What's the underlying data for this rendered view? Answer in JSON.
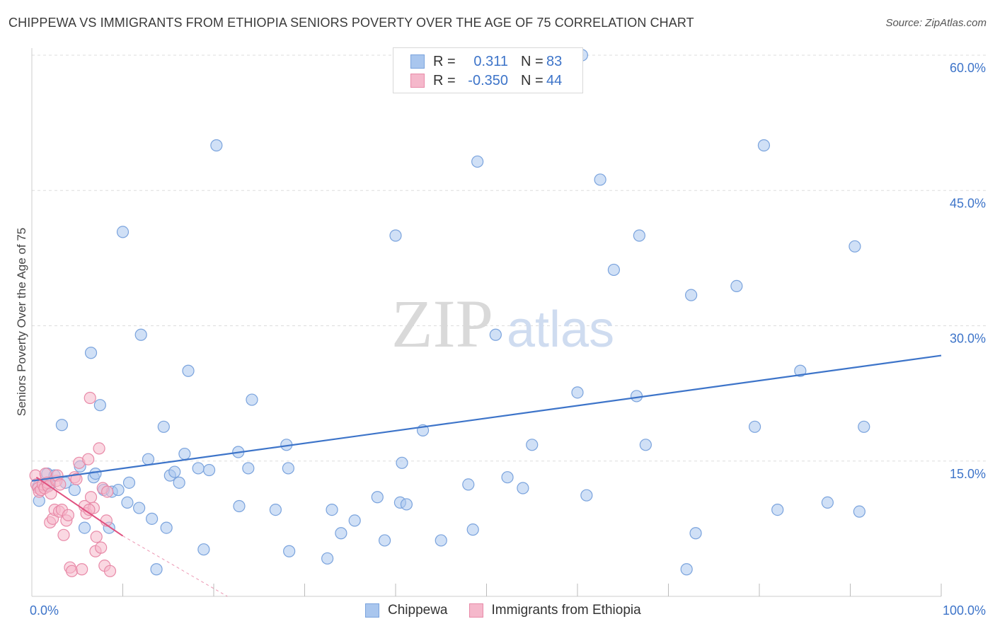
{
  "title": "CHIPPEWA VS IMMIGRANTS FROM ETHIOPIA SENIORS POVERTY OVER THE AGE OF 75 CORRELATION CHART",
  "source": "Source: ZipAtlas.com",
  "watermark": {
    "zip": "ZIP",
    "atlas": "atlas"
  },
  "colors": {
    "chippewa_fill": "#a9c6ee",
    "chippewa_stroke": "#7aa3dd",
    "chippewa_line": "#3d74c9",
    "ethiopia_fill": "#f5b8cb",
    "ethiopia_stroke": "#e88aa8",
    "ethiopia_line": "#e0507f",
    "value_text": "#3d74c9",
    "grid": "#dddddd"
  },
  "legend": {
    "rows": [
      {
        "r_label": "R =",
        "r_value": "0.311",
        "n_label": "N =",
        "n_value": "83"
      },
      {
        "r_label": "R =",
        "r_value": "-0.350",
        "n_label": "N =",
        "n_value": "44"
      }
    ]
  },
  "bottom_legend": [
    "Chippewa",
    "Immigrants from Ethiopia"
  ],
  "chart_data": {
    "type": "scatter",
    "title": "CHIPPEWA VS IMMIGRANTS FROM ETHIOPIA SENIORS POVERTY OVER THE AGE OF 75 CORRELATION CHART",
    "xlabel": "",
    "ylabel": "Seniors Poverty Over the Age of 75",
    "xlim": [
      0,
      100
    ],
    "ylim": [
      0,
      60
    ],
    "x_tick_labels": [
      "0.0%",
      "100.0%"
    ],
    "y_ticks": [
      15,
      30,
      45,
      60
    ],
    "y_tick_labels": [
      "15.0%",
      "30.0%",
      "45.0%",
      "60.0%"
    ],
    "grid": true,
    "legend_position": "top-center",
    "series": [
      {
        "name": "Chippewa",
        "r": 0.311,
        "n": 83,
        "trend": {
          "x": [
            0,
            100
          ],
          "y": [
            12.8,
            26.7
          ]
        },
        "points": [
          [
            0.7,
            12.2
          ],
          [
            0.8,
            10.6
          ],
          [
            1.5,
            12.2
          ],
          [
            1.7,
            13.6
          ],
          [
            2.0,
            12.4
          ],
          [
            2.5,
            13.4
          ],
          [
            3.3,
            19.0
          ],
          [
            3.7,
            12.6
          ],
          [
            4.7,
            11.8
          ],
          [
            5.3,
            14.4
          ],
          [
            5.8,
            7.6
          ],
          [
            6.5,
            27.0
          ],
          [
            6.8,
            13.2
          ],
          [
            7.0,
            13.6
          ],
          [
            7.5,
            21.2
          ],
          [
            7.9,
            11.8
          ],
          [
            8.5,
            7.6
          ],
          [
            8.8,
            11.6
          ],
          [
            9.5,
            11.8
          ],
          [
            10.0,
            40.4
          ],
          [
            10.5,
            10.4
          ],
          [
            10.7,
            12.6
          ],
          [
            11.8,
            9.8
          ],
          [
            12.0,
            29.0
          ],
          [
            12.8,
            15.2
          ],
          [
            13.2,
            8.6
          ],
          [
            13.7,
            3.0
          ],
          [
            14.5,
            18.8
          ],
          [
            14.8,
            7.6
          ],
          [
            15.2,
            13.4
          ],
          [
            15.7,
            13.8
          ],
          [
            16.2,
            12.6
          ],
          [
            16.8,
            15.8
          ],
          [
            17.2,
            25.0
          ],
          [
            18.3,
            14.2
          ],
          [
            18.9,
            5.2
          ],
          [
            19.5,
            14.0
          ],
          [
            20.3,
            50.0
          ],
          [
            28.3,
            5.0
          ],
          [
            22.7,
            16.0
          ],
          [
            22.8,
            10.0
          ],
          [
            23.8,
            14.2
          ],
          [
            24.2,
            21.8
          ],
          [
            26.8,
            9.6
          ],
          [
            28.0,
            16.8
          ],
          [
            28.2,
            14.2
          ],
          [
            32.5,
            4.2
          ],
          [
            33.0,
            9.6
          ],
          [
            34.0,
            7.0
          ],
          [
            35.5,
            8.4
          ],
          [
            38.0,
            11.0
          ],
          [
            38.8,
            6.2
          ],
          [
            40.0,
            40.0
          ],
          [
            40.5,
            10.4
          ],
          [
            40.7,
            14.8
          ],
          [
            41.2,
            10.2
          ],
          [
            43.0,
            18.4
          ],
          [
            45.0,
            6.2
          ],
          [
            48.0,
            12.4
          ],
          [
            48.5,
            7.4
          ],
          [
            49.0,
            48.2
          ],
          [
            51.0,
            29.0
          ],
          [
            52.3,
            13.2
          ],
          [
            54.0,
            12.0
          ],
          [
            55.0,
            16.8
          ],
          [
            60.0,
            22.6
          ],
          [
            60.5,
            60.0
          ],
          [
            61.0,
            11.2
          ],
          [
            62.5,
            46.2
          ],
          [
            64.0,
            36.2
          ],
          [
            66.5,
            22.2
          ],
          [
            66.8,
            40.0
          ],
          [
            67.5,
            16.8
          ],
          [
            72.0,
            3.0
          ],
          [
            72.5,
            33.4
          ],
          [
            73.0,
            7.0
          ],
          [
            77.5,
            34.4
          ],
          [
            79.5,
            18.8
          ],
          [
            80.5,
            50.0
          ],
          [
            82.0,
            9.6
          ],
          [
            84.5,
            25.0
          ],
          [
            87.5,
            10.4
          ],
          [
            90.5,
            38.8
          ],
          [
            91.0,
            9.4
          ],
          [
            91.5,
            18.8
          ]
        ]
      },
      {
        "name": "Immigrants from Ethiopia",
        "r": -0.35,
        "n": 44,
        "trend": {
          "x": [
            0.5,
            10.0
          ],
          "y": [
            13.2,
            6.7
          ]
        },
        "trend_dashed": {
          "x": [
            10.0,
            21.5
          ],
          "y": [
            6.7,
            0
          ]
        },
        "points": [
          [
            0.4,
            13.4
          ],
          [
            0.5,
            12.4
          ],
          [
            0.7,
            12.0
          ],
          [
            0.8,
            11.6
          ],
          [
            1.0,
            11.8
          ],
          [
            1.2,
            12.4
          ],
          [
            1.4,
            12.0
          ],
          [
            1.5,
            13.6
          ],
          [
            1.7,
            12.6
          ],
          [
            1.8,
            12.2
          ],
          [
            2.0,
            8.2
          ],
          [
            2.1,
            11.4
          ],
          [
            2.3,
            8.6
          ],
          [
            2.5,
            9.6
          ],
          [
            2.7,
            12.8
          ],
          [
            2.8,
            13.4
          ],
          [
            3.0,
            9.4
          ],
          [
            3.1,
            12.4
          ],
          [
            3.3,
            9.6
          ],
          [
            3.5,
            6.8
          ],
          [
            3.8,
            8.4
          ],
          [
            4.0,
            9.0
          ],
          [
            4.2,
            3.2
          ],
          [
            4.4,
            2.8
          ],
          [
            4.7,
            13.2
          ],
          [
            4.9,
            13.0
          ],
          [
            5.2,
            14.8
          ],
          [
            5.5,
            3.0
          ],
          [
            5.8,
            10.0
          ],
          [
            6.0,
            9.2
          ],
          [
            6.4,
            22.0
          ],
          [
            6.2,
            15.2
          ],
          [
            6.5,
            11.0
          ],
          [
            6.8,
            9.8
          ],
          [
            7.0,
            5.0
          ],
          [
            7.1,
            6.6
          ],
          [
            7.4,
            16.4
          ],
          [
            7.6,
            5.4
          ],
          [
            7.8,
            12.0
          ],
          [
            8.0,
            3.4
          ],
          [
            8.3,
            11.6
          ],
          [
            8.6,
            2.8
          ],
          [
            8.2,
            8.4
          ],
          [
            6.3,
            9.6
          ]
        ]
      }
    ]
  }
}
